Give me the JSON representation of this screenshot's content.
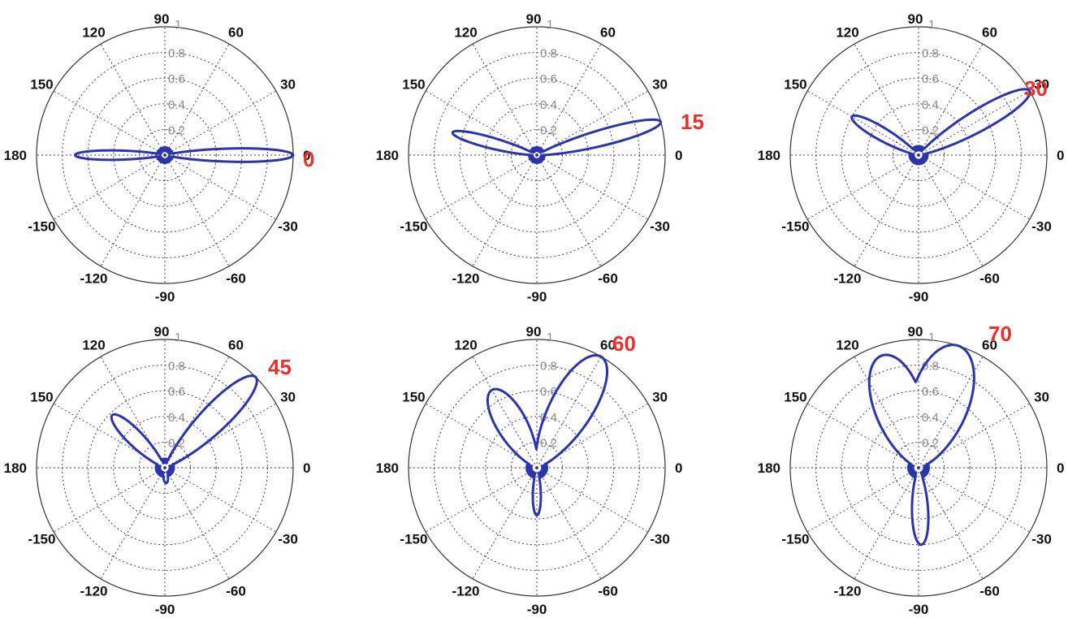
{
  "colors": {
    "pattern": "#2b34a8",
    "steer_label": "#e8312b",
    "grid": "#3a3a6e",
    "radial_tick": "#8a8a8a",
    "angle_tick": "#111111"
  },
  "chart_data": [
    {
      "type": "polar",
      "steer_label": "0",
      "angle_ticks": [
        "90",
        "60",
        "30",
        "0",
        "-30",
        "-60",
        "-90",
        "-120",
        "-150",
        "180",
        "150",
        "120"
      ],
      "radial_ticks": [
        "0.2",
        "0.4",
        "0.6",
        "0.8",
        "1"
      ],
      "rlim": [
        0,
        1
      ],
      "main_lobe": {
        "angle_deg": 0,
        "magnitude": 1.0,
        "half_width_deg": 5
      },
      "back_lobe": {
        "angle_deg": 180,
        "magnitude": 0.7,
        "half_width_deg": 5
      },
      "sidelobe_level": 0.06,
      "grid": true
    },
    {
      "type": "polar",
      "steer_label": "15",
      "angle_ticks": [
        "90",
        "60",
        "30",
        "0",
        "-30",
        "-60",
        "-90",
        "-120",
        "-150",
        "180",
        "150",
        "120"
      ],
      "radial_ticks": [
        "0.2",
        "0.4",
        "0.6",
        "0.8",
        "1"
      ],
      "rlim": [
        0,
        1
      ],
      "main_lobe": {
        "angle_deg": 15,
        "magnitude": 1.0,
        "half_width_deg": 6
      },
      "back_lobe": {
        "angle_deg": 165,
        "magnitude": 0.68,
        "half_width_deg": 6
      },
      "sidelobe_level": 0.06,
      "grid": true
    },
    {
      "type": "polar",
      "steer_label": "30",
      "angle_ticks": [
        "90",
        "60",
        "30",
        "0",
        "-30",
        "-60",
        "-90",
        "-120",
        "-150",
        "180",
        "150",
        "120"
      ],
      "radial_ticks": [
        "0.2",
        "0.4",
        "0.6",
        "0.8",
        "1"
      ],
      "rlim": [
        0,
        1
      ],
      "main_lobe": {
        "angle_deg": 30,
        "magnitude": 1.0,
        "half_width_deg": 8
      },
      "back_lobe": {
        "angle_deg": 150,
        "magnitude": 0.6,
        "half_width_deg": 8
      },
      "sidelobe_level": 0.07,
      "grid": true
    },
    {
      "type": "polar",
      "steer_label": "45",
      "angle_ticks": [
        "90",
        "60",
        "30",
        "0",
        "-30",
        "-60",
        "-90",
        "-120",
        "-150",
        "180",
        "150",
        "120"
      ],
      "radial_ticks": [
        "0.2",
        "0.4",
        "0.6",
        "0.8",
        "1"
      ],
      "rlim": [
        0,
        1
      ],
      "main_lobe": {
        "angle_deg": 45,
        "magnitude": 1.0,
        "half_width_deg": 10
      },
      "back_lobe": {
        "angle_deg": 135,
        "magnitude": 0.58,
        "half_width_deg": 10
      },
      "lower_lobe": {
        "angle_deg": -85,
        "magnitude": 0.12,
        "half_width_deg": 14
      },
      "sidelobe_level": 0.07,
      "grid": true
    },
    {
      "type": "polar",
      "steer_label": "60",
      "angle_ticks": [
        "90",
        "60",
        "30",
        "0",
        "-30",
        "-60",
        "-90",
        "-120",
        "-150",
        "180",
        "150",
        "120"
      ],
      "radial_ticks": [
        "0.2",
        "0.4",
        "0.6",
        "0.8",
        "1"
      ],
      "rlim": [
        0,
        1
      ],
      "main_lobe": {
        "angle_deg": 60,
        "magnitude": 1.0,
        "half_width_deg": 16
      },
      "back_lobe": {
        "angle_deg": 120,
        "magnitude": 0.7,
        "half_width_deg": 16
      },
      "lower_lobe": {
        "angle_deg": -90,
        "magnitude": 0.37,
        "half_width_deg": 8
      },
      "sidelobe_level": 0.08,
      "grid": true
    },
    {
      "type": "polar",
      "steer_label": "70",
      "angle_ticks": [
        "90",
        "60",
        "30",
        "0",
        "-30",
        "-60",
        "-90",
        "-120",
        "-150",
        "180",
        "150",
        "120"
      ],
      "radial_ticks": [
        "0.2",
        "0.4",
        "0.6",
        "0.8",
        "1"
      ],
      "rlim": [
        0,
        1
      ],
      "main_lobe": {
        "angle_deg": 72,
        "magnitude": 1.0,
        "half_width_deg": 22
      },
      "back_lobe": {
        "angle_deg": 108,
        "magnitude": 0.92,
        "half_width_deg": 20
      },
      "lower_lobe": {
        "angle_deg": -88,
        "magnitude": 0.6,
        "half_width_deg": 10
      },
      "sidelobe_level": 0.08,
      "grid": true
    }
  ]
}
